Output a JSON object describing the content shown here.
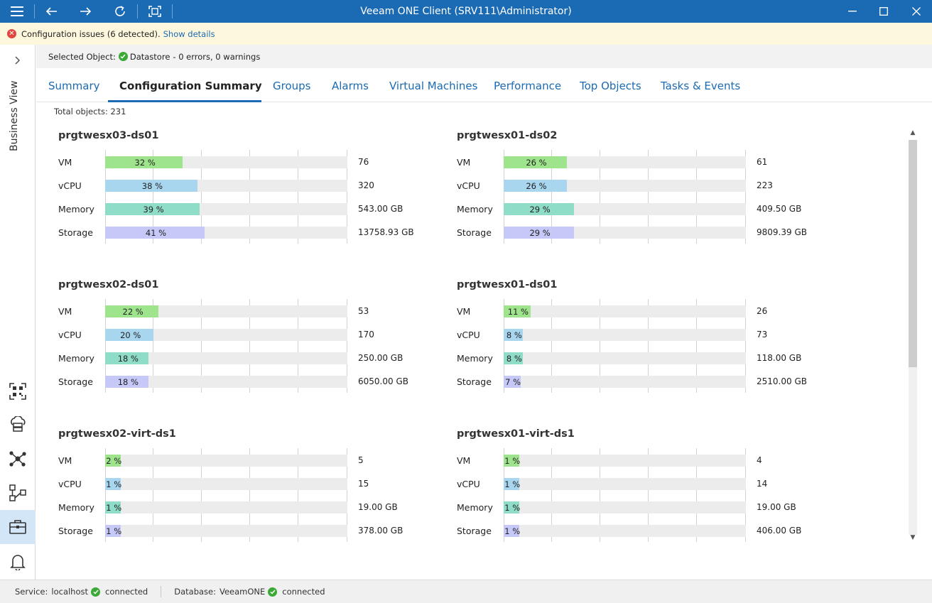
{
  "window": {
    "title": "Veeam ONE Client (SRV111\\Administrator)"
  },
  "notification": {
    "text": "Configuration issues (6 detected).",
    "link": "Show details"
  },
  "sidebar": {
    "label": "Business View",
    "icons": [
      "qr-scan-icon",
      "cloud-server-icon",
      "network-nodes-icon",
      "workflow-icon",
      "briefcase-icon",
      "bell-icon"
    ],
    "active_icon": "briefcase-icon"
  },
  "selected_object": {
    "label": "Selected Object:",
    "name": "Datastore",
    "summary": "- 0 errors, 0 warnings"
  },
  "tabs": [
    {
      "label": "Summary"
    },
    {
      "label": "Configuration Summary"
    },
    {
      "label": "Groups"
    },
    {
      "label": "Alarms"
    },
    {
      "label": "Virtual Machines"
    },
    {
      "label": "Performance"
    },
    {
      "label": "Top Objects"
    },
    {
      "label": "Tasks & Events"
    }
  ],
  "active_tab": "Configuration Summary",
  "total_objects": "Total objects: 231",
  "colors": {
    "brand": "#1b6ab4",
    "vm": "#9ee48c",
    "vcpu": "#a8d6ef",
    "memory": "#8fdcc8",
    "storage": "#c6c8f8",
    "ok": "#3aa935",
    "error": "#e2453c"
  },
  "datastores": [
    {
      "name": "prgtwesx03-ds01",
      "rows": [
        {
          "label": "VM",
          "pct": 32,
          "pct_text": "32 %",
          "value": "76"
        },
        {
          "label": "vCPU",
          "pct": 38,
          "pct_text": "38 %",
          "value": "320"
        },
        {
          "label": "Memory",
          "pct": 39,
          "pct_text": "39 %",
          "value": "543.00 GB"
        },
        {
          "label": "Storage",
          "pct": 41,
          "pct_text": "41 %",
          "value": "13758.93 GB"
        }
      ]
    },
    {
      "name": "prgtwesx01-ds02",
      "rows": [
        {
          "label": "VM",
          "pct": 26,
          "pct_text": "26 %",
          "value": "61"
        },
        {
          "label": "vCPU",
          "pct": 26,
          "pct_text": "26 %",
          "value": "223"
        },
        {
          "label": "Memory",
          "pct": 29,
          "pct_text": "29 %",
          "value": "409.50 GB"
        },
        {
          "label": "Storage",
          "pct": 29,
          "pct_text": "29 %",
          "value": "9809.39 GB"
        }
      ]
    },
    {
      "name": "prgtwesx02-ds01",
      "rows": [
        {
          "label": "VM",
          "pct": 22,
          "pct_text": "22 %",
          "value": "53"
        },
        {
          "label": "vCPU",
          "pct": 20,
          "pct_text": "20 %",
          "value": "170"
        },
        {
          "label": "Memory",
          "pct": 18,
          "pct_text": "18 %",
          "value": "250.00 GB"
        },
        {
          "label": "Storage",
          "pct": 18,
          "pct_text": "18 %",
          "value": "6050.00 GB"
        }
      ]
    },
    {
      "name": "prgtwesx01-ds01",
      "rows": [
        {
          "label": "VM",
          "pct": 11,
          "pct_text": "11 %",
          "value": "26"
        },
        {
          "label": "vCPU",
          "pct": 8,
          "pct_text": "8 %",
          "value": "73"
        },
        {
          "label": "Memory",
          "pct": 8,
          "pct_text": "8 %",
          "value": "118.00 GB"
        },
        {
          "label": "Storage",
          "pct": 7,
          "pct_text": "7 %",
          "value": "2510.00 GB"
        }
      ]
    },
    {
      "name": "prgtwesx02-virt-ds1",
      "rows": [
        {
          "label": "VM",
          "pct": 2,
          "pct_text": "2 %",
          "value": "5"
        },
        {
          "label": "vCPU",
          "pct": 1,
          "pct_text": "1 %",
          "value": "15"
        },
        {
          "label": "Memory",
          "pct": 1,
          "pct_text": "1 %",
          "value": "19.00 GB"
        },
        {
          "label": "Storage",
          "pct": 1,
          "pct_text": "1 %",
          "value": "378.00 GB"
        }
      ]
    },
    {
      "name": "prgtwesx01-virt-ds1",
      "rows": [
        {
          "label": "VM",
          "pct": 1,
          "pct_text": "1 %",
          "value": "4"
        },
        {
          "label": "vCPU",
          "pct": 1,
          "pct_text": "1 %",
          "value": "14"
        },
        {
          "label": "Memory",
          "pct": 1,
          "pct_text": "1 %",
          "value": "19.00 GB"
        },
        {
          "label": "Storage",
          "pct": 1,
          "pct_text": "1 %",
          "value": "406.00 GB"
        }
      ]
    }
  ],
  "status": {
    "service_label": "Service:",
    "service_host": "localhost",
    "service_state": "connected",
    "db_label": "Database:",
    "db_name": "VeeamONE",
    "db_state": "connected"
  }
}
